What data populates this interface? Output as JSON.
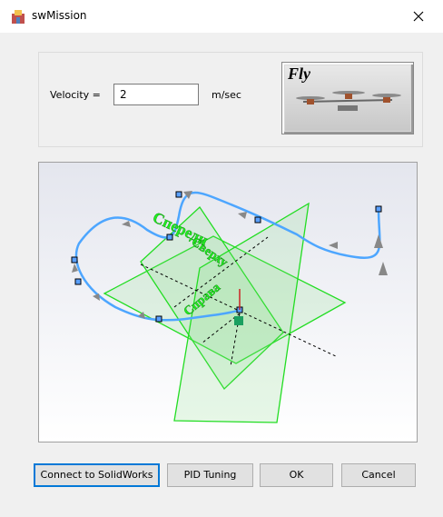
{
  "window": {
    "title": "swMission"
  },
  "velocity": {
    "label": "Velocity =",
    "value": "2",
    "unit": "m/sec"
  },
  "preview": {
    "label": "Fly"
  },
  "view": {
    "labels": [
      "Спереди",
      "Сверху",
      "Справа"
    ]
  },
  "buttons": [
    "Connect to SolidWorks",
    "PID Tuning",
    "OK",
    "Cancel"
  ]
}
